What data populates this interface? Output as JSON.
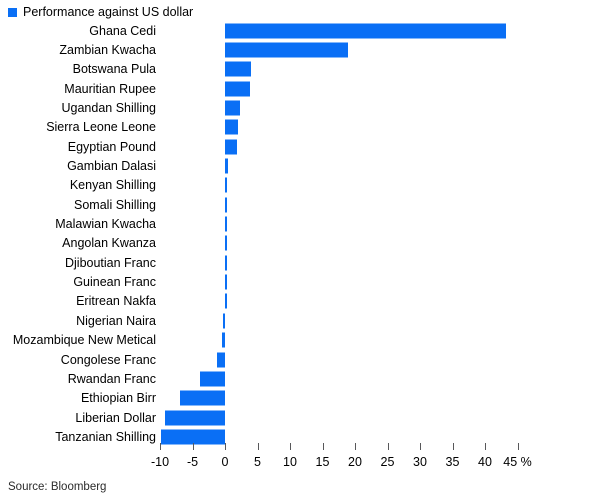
{
  "legend": {
    "label": "Performance against US dollar"
  },
  "source": "Source: Bloomberg",
  "colors": {
    "bar": "#0a6ff5",
    "tick": "#58585a",
    "text": "#000000",
    "background": "#ffffff"
  },
  "chart_data": {
    "type": "bar",
    "orientation": "horizontal",
    "title": "Performance against US dollar",
    "unit": "%",
    "legend": [
      "Performance against US dollar"
    ],
    "grid": false,
    "legend_position": "top-left",
    "categories": [
      "Ghana Cedi",
      "Zambian Kwacha",
      "Botswana Pula",
      "Mauritian Rupee",
      "Ugandan Shilling",
      "Sierra Leone Leone",
      "Egyptian Pound",
      "Gambian Dalasi",
      "Kenyan Shilling",
      "Somali Shilling",
      "Malawian Kwacha",
      "Angolan Kwanza",
      "Djiboutian Franc",
      "Guinean Franc",
      "Eritrean Nakfa",
      "Nigerian Naira",
      "Mozambique New Metical",
      "Congolese Franc",
      "Rwandan Franc",
      "Ethiopian Birr",
      "Liberian Dollar",
      "Tanzanian Shilling"
    ],
    "values": [
      43.2,
      18.9,
      4.0,
      3.8,
      2.3,
      2.0,
      1.8,
      0.5,
      0.2,
      0.2,
      0.2,
      0.2,
      0.2,
      0.2,
      0.2,
      -0.3,
      -0.5,
      -1.3,
      -3.9,
      -7.0,
      -9.2,
      -9.8
    ],
    "xlim": [
      -10,
      45
    ],
    "x_ticks": [
      -10,
      -5,
      0,
      5,
      10,
      15,
      20,
      25,
      30,
      35,
      40,
      45
    ],
    "x_tick_labels": [
      "-10",
      "-5",
      "0",
      "5",
      "10",
      "15",
      "20",
      "25",
      "30",
      "35",
      "40",
      "45 %"
    ]
  }
}
